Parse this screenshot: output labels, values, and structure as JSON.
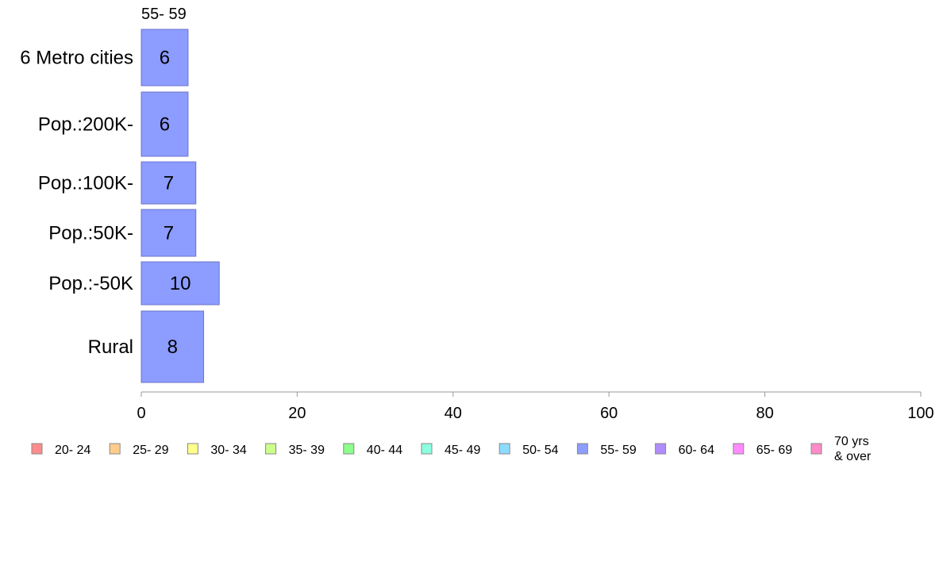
{
  "chart_data": {
    "type": "bar",
    "orientation": "horizontal",
    "stacked": true,
    "title": "",
    "xlabel": "",
    "ylabel": "",
    "xlim": [
      0,
      100
    ],
    "x_ticks": [
      0,
      20,
      40,
      60,
      80,
      100
    ],
    "grid": false,
    "categories": [
      "6 Metro cities",
      "Pop.:200K-",
      "Pop.:100K-",
      "Pop.:50K-",
      "Pop.:-50K",
      "Rural"
    ],
    "series": [
      {
        "name": "55- 59",
        "color": "#8c9cff",
        "values": [
          6,
          6,
          7,
          7,
          10,
          8
        ]
      }
    ],
    "series_label": "55- 59",
    "legend_position": "bottom",
    "legend": [
      {
        "label": "20- 24",
        "color": "#ff8c8c"
      },
      {
        "label": "25- 29",
        "color": "#ffcc8c"
      },
      {
        "label": "30- 34",
        "color": "#ffff8c"
      },
      {
        "label": "35- 39",
        "color": "#ccff8c"
      },
      {
        "label": "40- 44",
        "color": "#8cff8c"
      },
      {
        "label": "45- 49",
        "color": "#8cffe0"
      },
      {
        "label": "50- 54",
        "color": "#8cdcff"
      },
      {
        "label": "55- 59",
        "color": "#8c9cff"
      },
      {
        "label": "60- 64",
        "color": "#b08cff"
      },
      {
        "label": "65- 69",
        "color": "#ff8cff"
      },
      {
        "label": "70 yrs\n& over",
        "color": "#ff8cc8"
      }
    ]
  }
}
